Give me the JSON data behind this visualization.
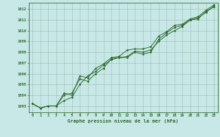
{
  "x": [
    0,
    1,
    2,
    3,
    4,
    5,
    6,
    7,
    8,
    9,
    10,
    11,
    12,
    13,
    14,
    15,
    16,
    17,
    18,
    19,
    20,
    21,
    22,
    23
  ],
  "line1": [
    1003.2,
    1002.8,
    1003.0,
    1003.0,
    1004.0,
    1004.2,
    1005.5,
    1005.3,
    1006.0,
    1006.5,
    1007.4,
    1007.5,
    1007.6,
    1008.1,
    1008.0,
    1008.2,
    1009.0,
    1009.6,
    1010.0,
    1010.4,
    1011.0,
    1011.1,
    1011.8,
    1012.2
  ],
  "line2": [
    1003.2,
    1002.8,
    1003.0,
    1003.0,
    1003.5,
    1003.8,
    1005.0,
    1005.8,
    1006.2,
    1006.8,
    1007.3,
    1007.5,
    1007.5,
    1008.0,
    1007.8,
    1008.0,
    1009.2,
    1009.8,
    1010.3,
    1010.5,
    1011.0,
    1011.2,
    1011.7,
    1012.3
  ],
  "line3": [
    1003.2,
    1002.8,
    1003.0,
    1003.0,
    1004.2,
    1004.0,
    1005.8,
    1005.6,
    1006.5,
    1006.9,
    1007.5,
    1007.6,
    1008.2,
    1008.3,
    1008.3,
    1008.5,
    1009.5,
    1009.9,
    1010.5,
    1010.6,
    1011.1,
    1011.3,
    1011.9,
    1012.4
  ],
  "line_color": "#2d6a2d",
  "bg_color": "#c8e8e8",
  "grid_color": "#99bbaa",
  "xlabel": "Graphe pression niveau de la mer (hPa)",
  "ylabel_ticks": [
    1003,
    1004,
    1005,
    1006,
    1007,
    1008,
    1009,
    1010,
    1011,
    1012
  ],
  "ylim": [
    1002.4,
    1012.6
  ],
  "xlim": [
    -0.5,
    23.5
  ],
  "xtick_labels": [
    "0",
    "1",
    "2",
    "3",
    "4",
    "5",
    "6",
    "7",
    "8",
    "9",
    "10",
    "11",
    "12",
    "13",
    "14",
    "15",
    "16",
    "17",
    "18",
    "19",
    "20",
    "21",
    "22",
    "23"
  ]
}
